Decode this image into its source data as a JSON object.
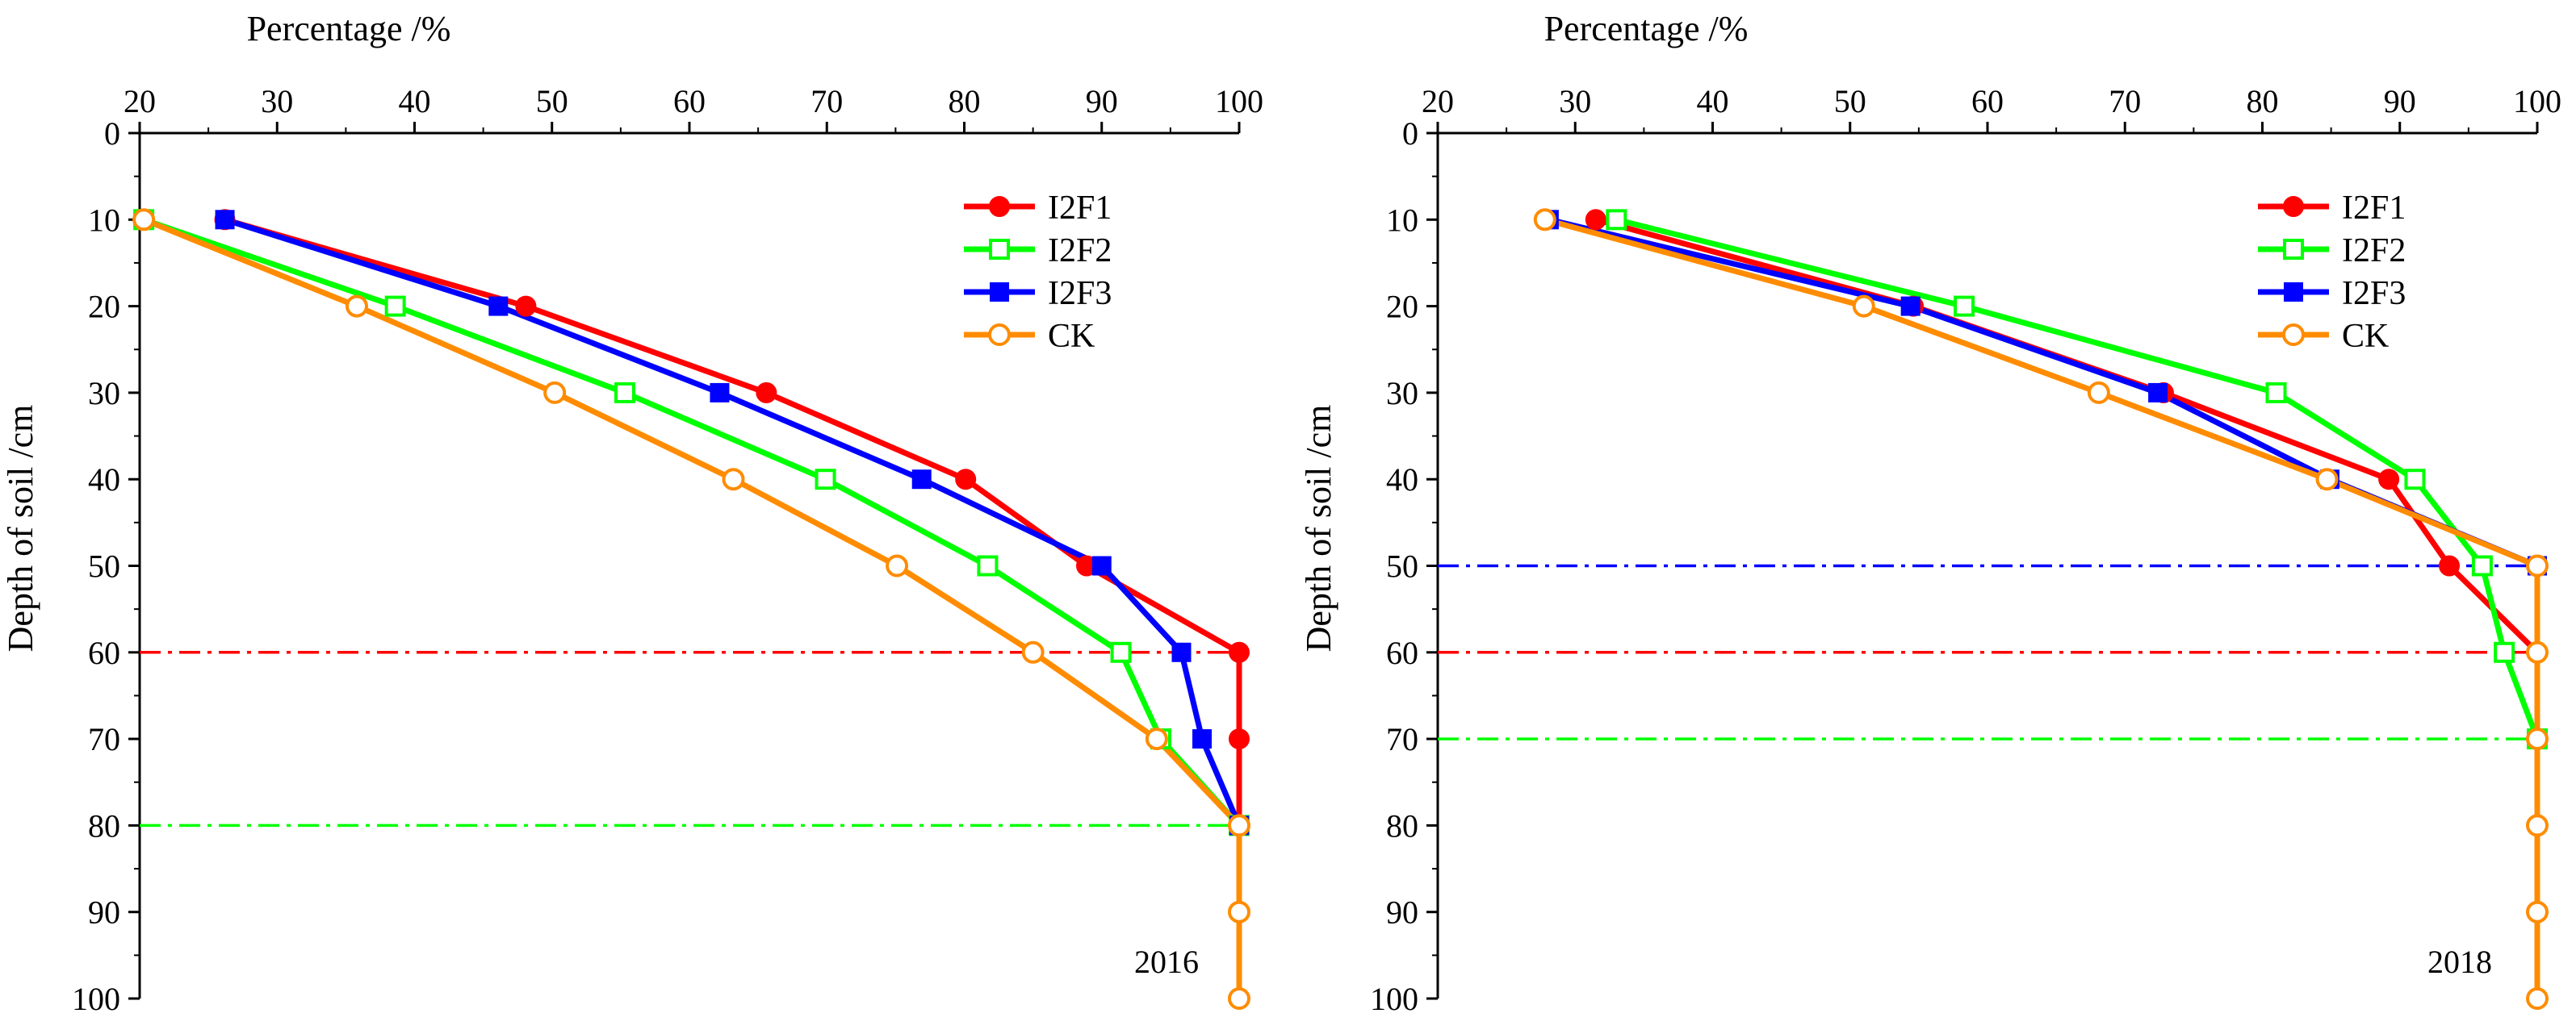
{
  "chart_data": [
    {
      "type": "line",
      "year_label": "2016",
      "xlabel": "Percentage /%",
      "ylabel": "Depth of soil /cm",
      "xlim": [
        20,
        100
      ],
      "ylim": [
        0,
        100
      ],
      "xticks": [
        "20",
        "30",
        "40",
        "50",
        "60",
        "70",
        "80",
        "90",
        "100"
      ],
      "yticks": [
        "0",
        "10",
        "20",
        "30",
        "40",
        "50",
        "60",
        "70",
        "80",
        "90",
        "100"
      ],
      "legend_position": "top-right",
      "series": [
        {
          "name": "I2F1",
          "color": "#ff0000",
          "marker": "circle-filled",
          "x": [
            26.2,
            48.1,
            65.6,
            80.1,
            88.9,
            100,
            100,
            100
          ],
          "y": [
            10,
            20,
            30,
            40,
            50,
            60,
            70,
            80
          ]
        },
        {
          "name": "I2F2",
          "color": "#00ff00",
          "marker": "square-open",
          "x": [
            20.3,
            38.6,
            55.3,
            69.9,
            81.7,
            91.4,
            94.3,
            100
          ],
          "y": [
            10,
            20,
            30,
            40,
            50,
            60,
            70,
            80
          ]
        },
        {
          "name": "I2F3",
          "color": "#0000ff",
          "marker": "square-filled",
          "x": [
            26.2,
            46.1,
            62.2,
            76.9,
            90.0,
            95.8,
            97.3,
            100
          ],
          "y": [
            10,
            20,
            30,
            40,
            50,
            60,
            70,
            80
          ]
        },
        {
          "name": "CK",
          "color": "#ff8c00",
          "marker": "circle-open",
          "x": [
            20.3,
            35.8,
            50.2,
            63.2,
            75.1,
            85.0,
            94.0,
            100,
            100,
            100
          ],
          "y": [
            10,
            20,
            30,
            40,
            50,
            60,
            70,
            80,
            90,
            100
          ]
        }
      ],
      "reference_lines": [
        {
          "y": 60,
          "color": "#ff0000"
        },
        {
          "y": 80,
          "color": "#00ff00"
        }
      ]
    },
    {
      "type": "line",
      "year_label": "2018",
      "xlabel": "Percentage /%",
      "ylabel": "Depth of soil /cm",
      "xlim": [
        20,
        100
      ],
      "ylim": [
        0,
        100
      ],
      "xticks": [
        "20",
        "30",
        "40",
        "50",
        "60",
        "70",
        "80",
        "90",
        "100"
      ],
      "yticks": [
        "0",
        "10",
        "20",
        "30",
        "40",
        "50",
        "60",
        "70",
        "80",
        "90",
        "100"
      ],
      "legend_position": "top-right",
      "series": [
        {
          "name": "I2F1",
          "color": "#ff0000",
          "marker": "circle-filled",
          "x": [
            31.5,
            54.6,
            72.8,
            89.2,
            93.6,
            100
          ],
          "y": [
            10,
            20,
            30,
            40,
            50,
            60
          ]
        },
        {
          "name": "I2F2",
          "color": "#00ff00",
          "marker": "square-open",
          "x": [
            33.0,
            58.3,
            81.0,
            91.1,
            96.0,
            97.6,
            100
          ],
          "y": [
            10,
            20,
            30,
            40,
            50,
            60,
            70
          ]
        },
        {
          "name": "I2F3",
          "color": "#0000ff",
          "marker": "square-filled",
          "x": [
            28.1,
            54.4,
            72.4,
            84.9,
            100
          ],
          "y": [
            10,
            20,
            30,
            40,
            50
          ]
        },
        {
          "name": "CK",
          "color": "#ff8c00",
          "marker": "circle-open",
          "x": [
            27.8,
            51.0,
            68.1,
            84.7,
            100,
            100,
            100,
            100,
            100,
            100
          ],
          "y": [
            10,
            20,
            30,
            40,
            50,
            60,
            70,
            80,
            90,
            100
          ]
        }
      ],
      "reference_lines": [
        {
          "y": 50,
          "color": "#0000ff"
        },
        {
          "y": 60,
          "color": "#ff0000"
        },
        {
          "y": 70,
          "color": "#00ff00"
        }
      ]
    }
  ]
}
